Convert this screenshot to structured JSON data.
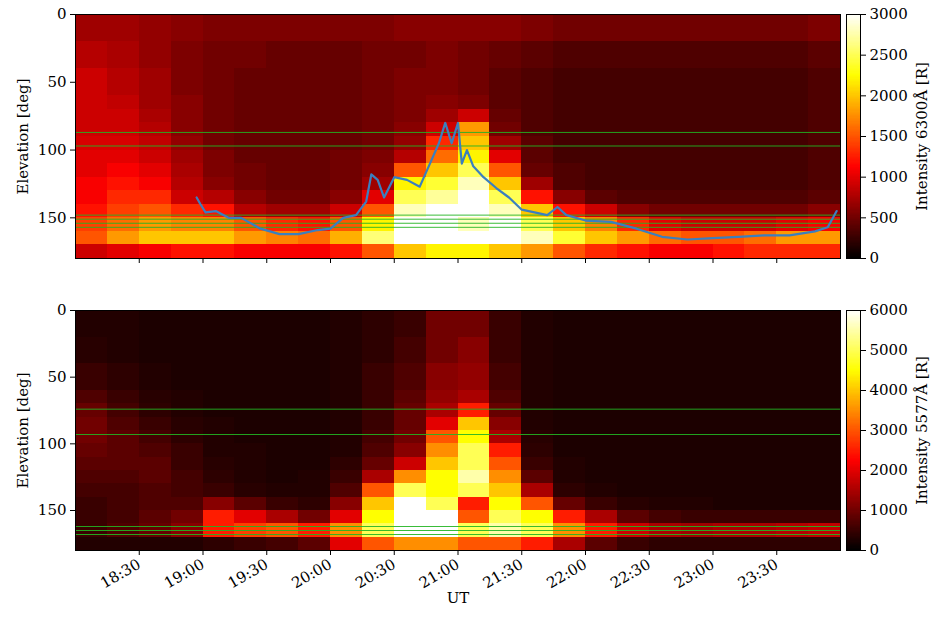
{
  "chart_data": [
    {
      "type": "heatmap",
      "y_label": "Elevation [deg]",
      "xlim": [
        18,
        24
      ],
      "xticks": [
        {
          "value": 18.5,
          "label": "18:30"
        },
        {
          "value": 19,
          "label": "19:00"
        },
        {
          "value": 19.5,
          "label": "19:30"
        },
        {
          "value": 20,
          "label": "20:00"
        },
        {
          "value": 20.5,
          "label": "20:30"
        },
        {
          "value": 21,
          "label": "21:00"
        },
        {
          "value": 21.5,
          "label": "21:30"
        },
        {
          "value": 22,
          "label": "22:00"
        },
        {
          "value": 22.5,
          "label": "22:30"
        },
        {
          "value": 23,
          "label": "23:00"
        },
        {
          "value": 23.5,
          "label": "23:30"
        }
      ],
      "ylim": [
        0,
        180
      ],
      "yticks": [
        0,
        50,
        100,
        150
      ],
      "tick_labels": "y",
      "colorbar": {
        "label": "Intensity 6300Å [R]",
        "lim": [
          0,
          3000
        ],
        "ticks": [
          0,
          500,
          1000,
          1500,
          2000,
          2500,
          3000
        ]
      },
      "cells": {
        "x_edges": [
          18,
          18.25,
          18.5,
          18.75,
          19,
          19.25,
          19.5,
          19.75,
          20,
          20.25,
          20.5,
          20.75,
          21,
          21.25,
          21.5,
          21.75,
          22,
          22.25,
          22.5,
          22.75,
          23,
          23.25,
          23.5,
          23.75,
          24
        ],
        "y_edges": [
          0,
          20,
          40,
          60,
          70,
          80,
          90,
          100,
          110,
          120,
          130,
          140,
          150,
          160,
          170,
          180
        ],
        "values": [
          [
            700,
            700,
            650,
            600,
            550,
            550,
            550,
            550,
            550,
            550,
            600,
            600,
            600,
            600,
            550,
            500,
            500,
            500,
            500,
            500,
            500,
            500,
            500,
            550
          ],
          [
            800,
            750,
            650,
            550,
            500,
            500,
            450,
            450,
            450,
            500,
            500,
            550,
            500,
            450,
            400,
            350,
            350,
            350,
            350,
            350,
            350,
            350,
            350,
            400
          ],
          [
            900,
            800,
            700,
            550,
            500,
            450,
            450,
            450,
            450,
            500,
            550,
            550,
            500,
            400,
            350,
            300,
            300,
            300,
            300,
            300,
            300,
            300,
            300,
            350
          ],
          [
            900,
            850,
            700,
            600,
            500,
            450,
            450,
            450,
            450,
            500,
            550,
            600,
            550,
            400,
            350,
            300,
            300,
            300,
            300,
            300,
            300,
            300,
            300,
            350
          ],
          [
            900,
            900,
            750,
            600,
            500,
            450,
            450,
            450,
            450,
            500,
            550,
            700,
            900,
            450,
            350,
            300,
            300,
            300,
            300,
            300,
            300,
            300,
            300,
            350
          ],
          [
            900,
            900,
            800,
            600,
            500,
            450,
            450,
            450,
            450,
            500,
            600,
            900,
            1800,
            500,
            350,
            300,
            300,
            300,
            300,
            300,
            300,
            300,
            300,
            350
          ],
          [
            950,
            950,
            850,
            650,
            500,
            450,
            450,
            450,
            450,
            500,
            650,
            1300,
            2000,
            700,
            400,
            300,
            300,
            300,
            300,
            300,
            300,
            300,
            300,
            350
          ],
          [
            1000,
            1000,
            900,
            700,
            550,
            450,
            450,
            450,
            500,
            550,
            800,
            1600,
            2200,
            1000,
            400,
            300,
            300,
            300,
            300,
            300,
            300,
            300,
            300,
            350
          ],
          [
            1000,
            1100,
            1000,
            750,
            550,
            500,
            450,
            450,
            500,
            600,
            1500,
            2000,
            2500,
            1500,
            450,
            350,
            300,
            300,
            300,
            300,
            300,
            300,
            300,
            350
          ],
          [
            1100,
            1200,
            1100,
            800,
            600,
            500,
            450,
            450,
            500,
            700,
            2200,
            2400,
            2800,
            2000,
            700,
            350,
            300,
            300,
            300,
            300,
            300,
            300,
            300,
            350
          ],
          [
            1100,
            1300,
            1300,
            900,
            800,
            600,
            500,
            500,
            600,
            1000,
            2500,
            2700,
            3000,
            2500,
            1200,
            600,
            400,
            350,
            350,
            350,
            350,
            350,
            350,
            400
          ],
          [
            1200,
            1400,
            1500,
            1300,
            1200,
            800,
            700,
            700,
            900,
            1500,
            2800,
            3000,
            3000,
            2800,
            2000,
            1200,
            900,
            600,
            500,
            500,
            500,
            500,
            500,
            600
          ],
          [
            1400,
            1600,
            1800,
            1700,
            1700,
            1500,
            1300,
            1200,
            1500,
            2200,
            3000,
            3000,
            2800,
            3000,
            2500,
            2000,
            1700,
            1300,
            1000,
            900,
            900,
            900,
            1000,
            1100
          ],
          [
            1500,
            1800,
            2000,
            2000,
            2000,
            1800,
            1700,
            1600,
            1900,
            2600,
            3000,
            3000,
            3000,
            3000,
            2800,
            2400,
            2000,
            1800,
            1600,
            1500,
            1500,
            1600,
            1800,
            1800
          ],
          [
            900,
            1000,
            1100,
            1200,
            1200,
            1100,
            1100,
            1100,
            1200,
            1500,
            2000,
            2200,
            2200,
            2000,
            1800,
            1500,
            1300,
            1200,
            1100,
            1100,
            1200,
            1300,
            1300,
            1300
          ]
        ]
      },
      "hlines": {
        "color": "#22b422",
        "values": [
          87,
          97,
          148,
          151,
          154,
          157
        ]
      },
      "boundary": {
        "color": "#3b7fbf",
        "x": [
          18.95,
          18.98,
          19.02,
          19.1,
          19.2,
          19.3,
          19.45,
          19.6,
          19.75,
          19.9,
          20.0,
          20.1,
          20.2,
          20.28,
          20.32,
          20.37,
          20.42,
          20.5,
          20.6,
          20.7,
          20.78,
          20.85,
          20.9,
          20.95,
          21.0,
          21.03,
          21.07,
          21.12,
          21.2,
          21.3,
          21.4,
          21.5,
          21.6,
          21.7,
          21.78,
          21.85,
          22.0,
          22.2,
          22.4,
          22.6,
          22.8,
          23.0,
          23.2,
          23.4,
          23.6,
          23.8,
          23.9,
          23.97
        ],
        "y": [
          135,
          140,
          146,
          145,
          150,
          150,
          158,
          162,
          162,
          159,
          158,
          150,
          148,
          138,
          118,
          122,
          135,
          120,
          122,
          127,
          110,
          95,
          80,
          95,
          80,
          110,
          100,
          112,
          120,
          128,
          135,
          144,
          146,
          148,
          142,
          148,
          152,
          153,
          158,
          164,
          166,
          165,
          164,
          163,
          163,
          160,
          157,
          145
        ]
      }
    },
    {
      "type": "heatmap",
      "x_label": "UT",
      "y_label": "Elevation [deg]",
      "xlim": [
        18,
        24
      ],
      "xticks": [
        {
          "value": 18.5,
          "label": "18:30"
        },
        {
          "value": 19,
          "label": "19:00"
        },
        {
          "value": 19.5,
          "label": "19:30"
        },
        {
          "value": 20,
          "label": "20:00"
        },
        {
          "value": 20.5,
          "label": "20:30"
        },
        {
          "value": 21,
          "label": "21:00"
        },
        {
          "value": 21.5,
          "label": "21:30"
        },
        {
          "value": 22,
          "label": "22:00"
        },
        {
          "value": 22.5,
          "label": "22:30"
        },
        {
          "value": 23,
          "label": "23:00"
        },
        {
          "value": 23.5,
          "label": "23:30"
        }
      ],
      "ylim": [
        0,
        180
      ],
      "yticks": [
        0,
        50,
        100,
        150
      ],
      "colorbar": {
        "label": "Intensity 5577Å [R]",
        "lim": [
          0,
          6000
        ],
        "ticks": [
          0,
          1000,
          2000,
          3000,
          4000,
          5000,
          6000
        ]
      },
      "cells": {
        "x_edges": [
          18,
          18.25,
          18.5,
          18.75,
          19,
          19.25,
          19.5,
          19.75,
          20,
          20.25,
          20.5,
          20.75,
          21,
          21.25,
          21.5,
          21.75,
          22,
          22.25,
          22.5,
          22.75,
          23,
          23.25,
          23.5,
          23.75,
          24
        ],
        "y_edges": [
          0,
          20,
          40,
          60,
          70,
          80,
          90,
          100,
          110,
          120,
          130,
          140,
          150,
          160,
          170,
          180
        ],
        "values": [
          [
            300,
            300,
            250,
            250,
            250,
            250,
            250,
            250,
            300,
            400,
            500,
            1000,
            1000,
            500,
            300,
            250,
            250,
            250,
            250,
            250,
            250,
            250,
            250,
            250
          ],
          [
            350,
            300,
            250,
            250,
            250,
            250,
            250,
            250,
            300,
            400,
            600,
            1000,
            1200,
            500,
            300,
            250,
            250,
            250,
            250,
            250,
            250,
            250,
            250,
            250
          ],
          [
            500,
            400,
            300,
            250,
            250,
            250,
            250,
            250,
            300,
            500,
            700,
            1200,
            1300,
            600,
            300,
            250,
            250,
            250,
            250,
            250,
            250,
            250,
            250,
            250
          ],
          [
            700,
            500,
            350,
            300,
            250,
            250,
            250,
            250,
            300,
            500,
            800,
            1300,
            1500,
            700,
            300,
            250,
            250,
            250,
            250,
            250,
            250,
            250,
            250,
            250
          ],
          [
            900,
            600,
            400,
            300,
            250,
            250,
            250,
            250,
            300,
            500,
            900,
            1500,
            2500,
            900,
            300,
            250,
            250,
            250,
            250,
            250,
            250,
            250,
            250,
            250
          ],
          [
            1000,
            700,
            500,
            350,
            300,
            250,
            250,
            250,
            300,
            500,
            900,
            2000,
            4000,
            1200,
            300,
            250,
            250,
            250,
            250,
            250,
            250,
            250,
            250,
            250
          ],
          [
            1000,
            800,
            600,
            400,
            300,
            250,
            250,
            250,
            300,
            600,
            1000,
            3000,
            4500,
            1500,
            350,
            250,
            250,
            250,
            250,
            250,
            250,
            250,
            250,
            250
          ],
          [
            900,
            800,
            700,
            500,
            300,
            300,
            250,
            250,
            300,
            700,
            1200,
            3500,
            5000,
            2500,
            400,
            250,
            250,
            250,
            250,
            250,
            250,
            250,
            250,
            250
          ],
          [
            800,
            800,
            800,
            500,
            350,
            300,
            250,
            250,
            400,
            900,
            1800,
            4000,
            5000,
            3000,
            500,
            300,
            250,
            250,
            250,
            250,
            250,
            250,
            250,
            250
          ],
          [
            700,
            700,
            800,
            600,
            400,
            300,
            250,
            300,
            500,
            1500,
            3500,
            4500,
            5500,
            3500,
            800,
            300,
            250,
            250,
            250,
            250,
            250,
            250,
            250,
            250
          ],
          [
            600,
            600,
            700,
            600,
            500,
            350,
            300,
            300,
            700,
            3000,
            5000,
            4500,
            5000,
            4000,
            1500,
            400,
            300,
            250,
            250,
            250,
            250,
            250,
            250,
            250
          ],
          [
            500,
            600,
            700,
            700,
            1200,
            800,
            500,
            400,
            1200,
            4000,
            6000,
            5000,
            2500,
            4500,
            3000,
            900,
            500,
            350,
            300,
            300,
            250,
            250,
            250,
            250
          ],
          [
            500,
            600,
            800,
            1000,
            2500,
            2000,
            1500,
            1000,
            2000,
            4500,
            6000,
            6000,
            3000,
            5000,
            4500,
            2500,
            1500,
            800,
            600,
            500,
            500,
            500,
            500,
            500
          ],
          [
            500,
            700,
            900,
            1200,
            2500,
            2800,
            3000,
            2500,
            3500,
            5000,
            6000,
            6000,
            5000,
            5500,
            5000,
            3500,
            2500,
            1800,
            1500,
            1400,
            1500,
            1500,
            1600,
            1700
          ],
          [
            300,
            300,
            300,
            300,
            400,
            500,
            600,
            800,
            2000,
            3000,
            3500,
            3500,
            3000,
            3000,
            2500,
            1500,
            800,
            500,
            400,
            400,
            400,
            400,
            400,
            400
          ]
        ]
      },
      "hlines": {
        "color": "#22b422",
        "values": [
          74,
          93,
          162,
          165,
          168
        ]
      }
    }
  ]
}
